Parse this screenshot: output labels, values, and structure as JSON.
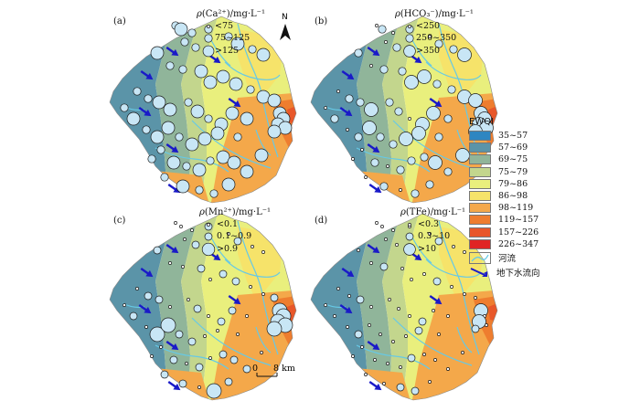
{
  "panels": [
    {
      "label": "(a)",
      "param": "Ca²⁺",
      "unit": "/mg·L⁻¹",
      "legend": [
        "<75",
        "75~125",
        ">125"
      ]
    },
    {
      "label": "(b)",
      "param": "HCO₃⁻",
      "unit": "/mg·L⁻¹",
      "legend": [
        "<250",
        "250~350",
        ">350"
      ]
    },
    {
      "label": "(c)",
      "param": "Mn²⁺",
      "unit": "/mg·L⁻¹",
      "legend": [
        "<0.1",
        "0.1~0.9",
        ">0.9"
      ]
    },
    {
      "label": "(d)",
      "param": "TFe",
      "unit": "/mg·L⁻¹",
      "legend": [
        "<0.3",
        "0.3~10",
        ">10"
      ]
    }
  ],
  "rho": "ρ",
  "north_label": "N",
  "scale": {
    "zero": "0",
    "end": "8 km"
  },
  "ewqi": {
    "title": "EWQI",
    "classes": [
      {
        "label": "35~57",
        "color": "#2e86c1"
      },
      {
        "label": "57~69",
        "color": "#5b94a8"
      },
      {
        "label": "69~75",
        "color": "#90b59a"
      },
      {
        "label": "75~79",
        "color": "#c3d68d"
      },
      {
        "label": "79~86",
        "color": "#e9ef7d"
      },
      {
        "label": "86~98",
        "color": "#f6e36a"
      },
      {
        "label": "98~119",
        "color": "#f4a84a"
      },
      {
        "label": "119~157",
        "color": "#ee7d2f"
      },
      {
        "label": "157~226",
        "color": "#e8572a"
      },
      {
        "label": "226~347",
        "color": "#e02424"
      }
    ],
    "river_label": "河流",
    "flow_label": "地下水流向"
  },
  "colors": {
    "river": "#66c9e6",
    "arrow": "#1a1ac8",
    "circle_fill": "#c8e6f5",
    "circle_stroke": "#1b1b1b"
  }
}
